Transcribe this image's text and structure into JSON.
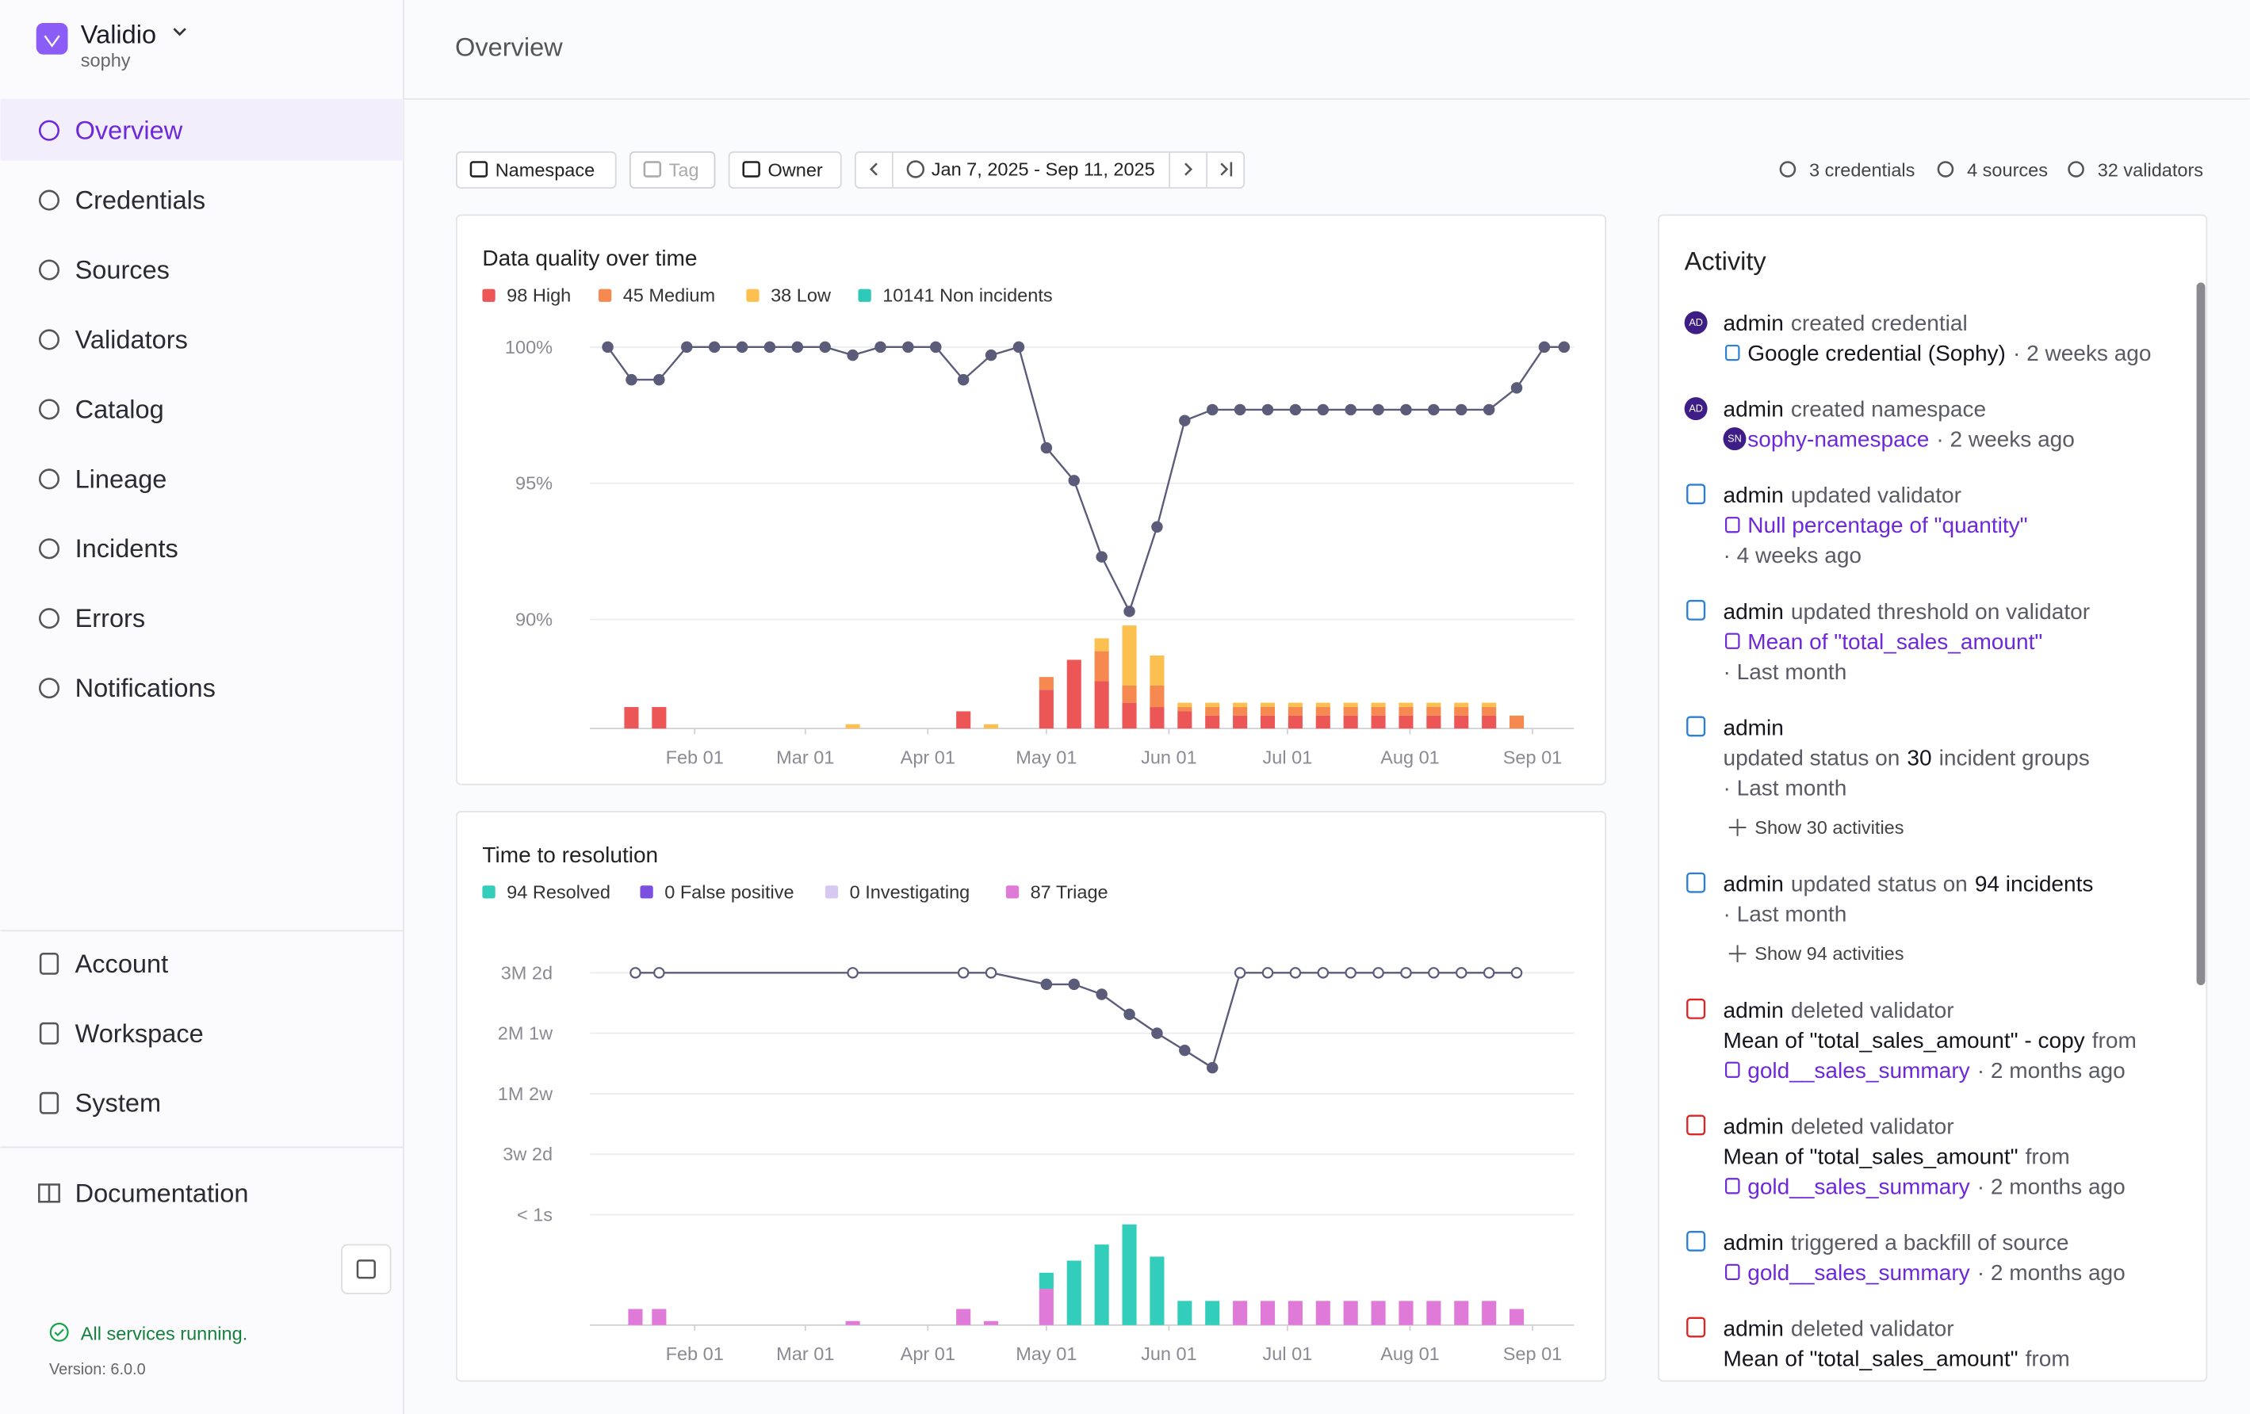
{
  "header": {
    "app": "Validio",
    "user": "sophy",
    "page_title": "Overview"
  },
  "sidebar": {
    "active_index": 0,
    "nav": [
      "Overview",
      "Credentials",
      "Sources",
      "Validators",
      "Catalog",
      "Lineage",
      "Incidents",
      "Errors",
      "Notifications"
    ],
    "nav_bottom": [
      "Account",
      "Workspace",
      "System"
    ],
    "documentation": "Documentation",
    "status": "All services running.",
    "version": "Version: 6.0.0"
  },
  "filters": [
    {
      "label": "Namespace",
      "disabled": false
    },
    {
      "label": "Tag",
      "disabled": true
    },
    {
      "label": "Owner",
      "disabled": false
    }
  ],
  "date_range": "Jan 7, 2025 - Sep 11, 2025",
  "stats": [
    "3 credentials",
    "4 sources",
    "32 validators"
  ],
  "chart_data": [
    {
      "type": "bar-line",
      "title": "Data quality over time",
      "x": [
        9,
        15,
        22,
        29,
        36,
        43,
        50,
        57,
        64,
        71,
        78,
        85,
        92,
        99,
        106,
        113,
        120,
        127,
        134,
        141,
        148,
        155,
        162,
        169,
        176,
        183,
        190,
        197,
        204,
        211,
        218,
        225,
        232,
        239,
        246,
        251
      ],
      "xlim": [
        4.5,
        253.5
      ],
      "xticks": [
        {
          "value": 31,
          "label": "Feb 01"
        },
        {
          "value": 59,
          "label": "Mar 01"
        },
        {
          "value": 90,
          "label": "Apr 01"
        },
        {
          "value": 120,
          "label": "May 01"
        },
        {
          "value": 151,
          "label": "Jun 01"
        },
        {
          "value": 181,
          "label": "Jul 01"
        },
        {
          "value": 212,
          "label": "Aug 01"
        },
        {
          "value": 243,
          "label": "Sep 01"
        }
      ],
      "ylim": [
        86,
        100.5
      ],
      "yticks": [
        {
          "value": 90,
          "label": "90%"
        },
        {
          "value": 95,
          "label": "95%"
        },
        {
          "value": 100,
          "label": "100%"
        }
      ],
      "y2lim": [
        0,
        92
      ],
      "grid": true,
      "line": {
        "color": "#5b5b7a",
        "values": [
          100,
          98.8,
          98.8,
          100,
          100,
          100,
          100,
          100,
          100,
          99.7,
          100,
          100,
          100,
          98.8,
          99.7,
          100,
          96.3,
          95.1,
          92.3,
          90.3,
          93.4,
          97.3,
          97.7,
          97.7,
          97.7,
          97.7,
          97.7,
          97.7,
          97.7,
          97.7,
          97.7,
          97.7,
          97.7,
          98.5,
          100,
          100
        ]
      },
      "stack_from_bottom": [
        0,
        1,
        2
      ],
      "series": [
        {
          "name": "98 High",
          "color": "#ec5656",
          "axis": "y2",
          "values": [
            0,
            5,
            5,
            0,
            0,
            0,
            0,
            0,
            0,
            0,
            0,
            0,
            0,
            4,
            0,
            0,
            9,
            16,
            11,
            6,
            5,
            4,
            3,
            3,
            3,
            3,
            3,
            3,
            3,
            3,
            3,
            3,
            3,
            0,
            0,
            0
          ]
        },
        {
          "name": "45 Medium",
          "color": "#f5894f",
          "axis": "y2",
          "values": [
            0,
            0,
            0,
            0,
            0,
            0,
            0,
            0,
            0,
            0,
            0,
            0,
            0,
            0,
            0,
            0,
            3,
            0,
            7,
            4,
            5,
            1,
            2,
            2,
            2,
            2,
            2,
            2,
            2,
            2,
            2,
            2,
            2,
            3,
            0,
            0
          ]
        },
        {
          "name": "38 Low",
          "color": "#fbc04f",
          "axis": "y2",
          "values": [
            0,
            0,
            0,
            0,
            0,
            0,
            0,
            0,
            0,
            1,
            0,
            0,
            0,
            0,
            1,
            0,
            0,
            0,
            3,
            14,
            7,
            1,
            1,
            1,
            1,
            1,
            1,
            1,
            1,
            1,
            1,
            1,
            1,
            0,
            0,
            0
          ]
        },
        {
          "name": "10141 Non incidents",
          "color": "#2ec9b8"
        }
      ]
    },
    {
      "type": "bar-line",
      "title": "Time to resolution",
      "x": [
        16,
        22,
        71,
        99,
        106,
        120,
        127,
        134,
        141,
        148,
        155,
        162,
        169,
        176,
        183,
        190,
        197,
        204,
        211,
        218,
        225,
        232,
        239
      ],
      "xlim": [
        4.5,
        253.5
      ],
      "xticks": [
        {
          "value": 31,
          "label": "Feb 01"
        },
        {
          "value": 59,
          "label": "Mar 01"
        },
        {
          "value": 90,
          "label": "Apr 01"
        },
        {
          "value": 120,
          "label": "May 01"
        },
        {
          "value": 151,
          "label": "Jun 01"
        },
        {
          "value": 181,
          "label": "Jul 01"
        },
        {
          "value": 212,
          "label": "Aug 01"
        },
        {
          "value": 243,
          "label": "Sep 01"
        }
      ],
      "ylim": [
        -42,
        102
      ],
      "yticks": [
        {
          "value": 0,
          "label": "< 1s"
        },
        {
          "value": 23,
          "label": "3w 2d"
        },
        {
          "value": 46,
          "label": "1M 2w"
        },
        {
          "value": 69,
          "label": "2M 1w"
        },
        {
          "value": 92,
          "label": "3M 2d"
        }
      ],
      "y2lim": [
        0,
        94
      ],
      "grid": true,
      "line": {
        "color": "#5b5b7a",
        "values": [
          92,
          92,
          92,
          92,
          92,
          87.6,
          87.6,
          83.8,
          76.2,
          69,
          62.5,
          55.9,
          92,
          92,
          92,
          92,
          92,
          92,
          92,
          92,
          92,
          92,
          92
        ],
        "marker_fill": [
          "open",
          "open",
          "open",
          "open",
          "open",
          "filled",
          "filled",
          "filled",
          "filled",
          "filled",
          "filled",
          "filled",
          "open",
          "open",
          "open",
          "open",
          "open",
          "open",
          "open",
          "open",
          "open",
          "open",
          "open"
        ]
      },
      "stack_from_bottom": [
        3,
        2,
        1,
        0
      ],
      "series": [
        {
          "name": "94 Resolved",
          "color": "#33cdbb",
          "axis": "y2",
          "values": [
            0,
            0,
            0,
            0,
            0,
            4,
            16,
            20,
            25,
            17,
            6,
            6,
            0,
            0,
            0,
            0,
            0,
            0,
            0,
            0,
            0,
            0,
            0
          ]
        },
        {
          "name": "0 False positive",
          "color": "#7b4fe0",
          "axis": "y2",
          "values": [
            0,
            0,
            0,
            0,
            0,
            0,
            0,
            0,
            0,
            0,
            0,
            0,
            0,
            0,
            0,
            0,
            0,
            0,
            0,
            0,
            0,
            0,
            0
          ]
        },
        {
          "name": "0 Investigating",
          "color": "#d6c8f0",
          "axis": "y2",
          "values": [
            0,
            0,
            0,
            0,
            0,
            0,
            0,
            0,
            0,
            0,
            0,
            0,
            0,
            0,
            0,
            0,
            0,
            0,
            0,
            0,
            0,
            0,
            0
          ]
        },
        {
          "name": "87 Triage",
          "color": "#e07ad8",
          "axis": "y2",
          "values": [
            4,
            4,
            1,
            4,
            1,
            9,
            0,
            0,
            0,
            0,
            0,
            0,
            6,
            6,
            6,
            6,
            6,
            6,
            6,
            6,
            6,
            6,
            4
          ]
        }
      ]
    }
  ],
  "activity": {
    "title": "Activity",
    "items": [
      {
        "icon": "avatar",
        "avatar": "AD",
        "lines": [
          {
            "segments": [
              {
                "text": "admin",
                "style": "actor"
              },
              {
                "text": "created credential",
                "style": "normal"
              }
            ]
          },
          {
            "icon": "shield",
            "segments": [
              {
                "text": "Google credential (Sophy)",
                "style": "strong"
              },
              {
                "text": "· 2 weeks ago",
                "style": "muted"
              }
            ]
          }
        ]
      },
      {
        "icon": "avatar",
        "avatar": "AD",
        "lines": [
          {
            "segments": [
              {
                "text": "admin",
                "style": "actor"
              },
              {
                "text": "created namespace",
                "style": "normal"
              }
            ]
          },
          {
            "avatar": "SN",
            "segments": [
              {
                "text": "sophy-namespace",
                "style": "link"
              },
              {
                "text": "· 2 weeks ago",
                "style": "muted"
              }
            ]
          }
        ]
      },
      {
        "icon": "edit",
        "lines": [
          {
            "segments": [
              {
                "text": "admin",
                "style": "actor"
              },
              {
                "text": "updated validator",
                "style": "normal"
              }
            ]
          },
          {
            "icon": "table",
            "segments": [
              {
                "text": "Null percentage of \"quantity\"",
                "style": "link"
              }
            ]
          },
          {
            "segments": [
              {
                "text": "· 4 weeks ago",
                "style": "muted"
              }
            ]
          }
        ]
      },
      {
        "icon": "edit",
        "lines": [
          {
            "segments": [
              {
                "text": "admin",
                "style": "actor"
              },
              {
                "text": "updated threshold on validator",
                "style": "normal"
              }
            ]
          },
          {
            "icon": "metric",
            "segments": [
              {
                "text": "Mean of \"total_sales_amount\"",
                "style": "link"
              }
            ]
          },
          {
            "segments": [
              {
                "text": "· Last month",
                "style": "muted"
              }
            ]
          }
        ]
      },
      {
        "icon": "flame",
        "lines": [
          {
            "segments": [
              {
                "text": "admin",
                "style": "actor"
              }
            ]
          },
          {
            "segments": [
              {
                "text": "updated status on",
                "style": "normal"
              },
              {
                "text": "30",
                "style": "strong"
              },
              {
                "text": "incident groups",
                "style": "normal"
              }
            ]
          },
          {
            "segments": [
              {
                "text": "· Last month",
                "style": "muted"
              }
            ]
          },
          {
            "segments": [
              {
                "text": "Show 30 activities",
                "style": "show"
              }
            ]
          }
        ]
      },
      {
        "icon": "flame",
        "lines": [
          {
            "segments": [
              {
                "text": "admin",
                "style": "actor"
              },
              {
                "text": "updated status on",
                "style": "normal"
              },
              {
                "text": "94 incidents",
                "style": "strong"
              }
            ]
          },
          {
            "segments": [
              {
                "text": "· Last month",
                "style": "muted"
              }
            ]
          },
          {
            "segments": [
              {
                "text": "Show 94 activities",
                "style": "show"
              }
            ]
          }
        ]
      },
      {
        "icon": "trash",
        "lines": [
          {
            "segments": [
              {
                "text": "admin",
                "style": "actor"
              },
              {
                "text": "deleted validator",
                "style": "normal"
              }
            ]
          },
          {
            "segments": [
              {
                "text": "Mean of \"total_sales_amount\" - copy",
                "style": "strong"
              },
              {
                "text": "from",
                "style": "normal"
              }
            ]
          },
          {
            "icon": "source",
            "segments": [
              {
                "text": "gold__sales_summary",
                "style": "link"
              },
              {
                "text": "· 2 months ago",
                "style": "muted"
              }
            ]
          }
        ]
      },
      {
        "icon": "trash",
        "lines": [
          {
            "segments": [
              {
                "text": "admin",
                "style": "actor"
              },
              {
                "text": "deleted validator",
                "style": "normal"
              }
            ]
          },
          {
            "segments": [
              {
                "text": "Mean of \"total_sales_amount\"",
                "style": "strong"
              },
              {
                "text": "from",
                "style": "normal"
              }
            ]
          },
          {
            "icon": "source",
            "segments": [
              {
                "text": "gold__sales_summary",
                "style": "link"
              },
              {
                "text": "· 2 months ago",
                "style": "muted"
              }
            ]
          }
        ]
      },
      {
        "icon": "undo",
        "lines": [
          {
            "segments": [
              {
                "text": "admin",
                "style": "actor"
              },
              {
                "text": "triggered a backfill of source",
                "style": "normal"
              }
            ]
          },
          {
            "icon": "source",
            "segments": [
              {
                "text": "gold__sales_summary",
                "style": "link"
              },
              {
                "text": "· 2 months ago",
                "style": "muted"
              }
            ]
          }
        ]
      },
      {
        "icon": "trash",
        "lines": [
          {
            "segments": [
              {
                "text": "admin",
                "style": "actor"
              },
              {
                "text": "deleted validator",
                "style": "normal"
              }
            ]
          },
          {
            "segments": [
              {
                "text": "Mean of \"total_sales_amount\"",
                "style": "strong"
              },
              {
                "text": "from",
                "style": "normal"
              }
            ]
          }
        ]
      }
    ]
  }
}
